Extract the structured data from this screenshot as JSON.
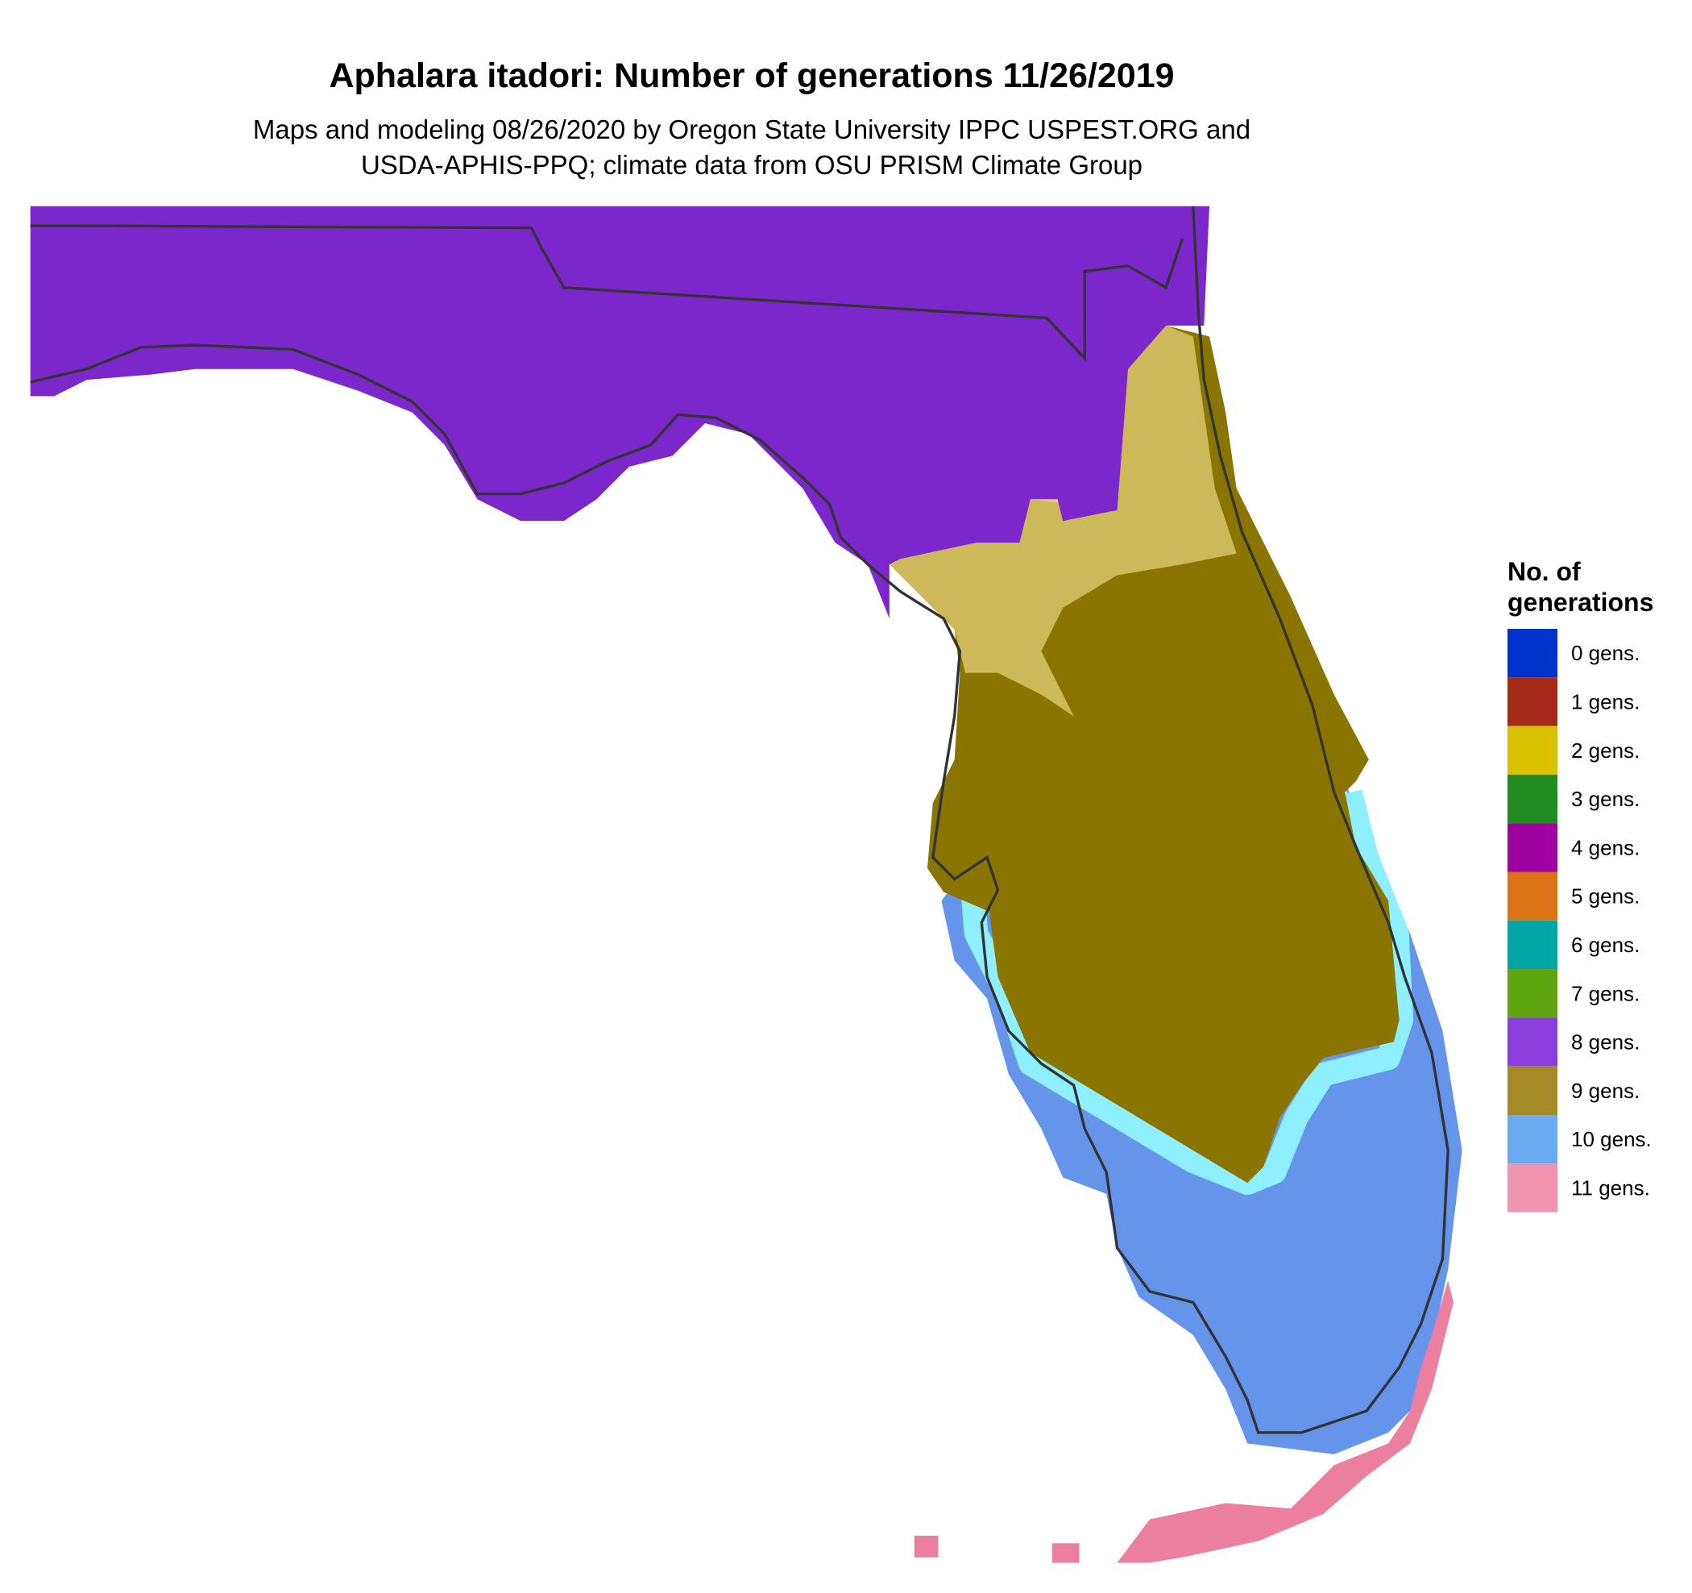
{
  "title": "Aphalara itadori: Number of generations 11/26/2019",
  "subtitle": [
    "Maps and modeling 08/26/2020 by Oregon State University IPPC USPEST.ORG and",
    "USDA-APHIS-PPQ; climate data from OSU PRISM Climate Group"
  ],
  "legend": {
    "title": [
      "No. of",
      "generations"
    ],
    "items": [
      {
        "label": "0 gens.",
        "color": "#0033cc"
      },
      {
        "label": "1 gens.",
        "color": "#a52a1a"
      },
      {
        "label": "2 gens.",
        "color": "#d9c200"
      },
      {
        "label": "3 gens.",
        "color": "#228b22"
      },
      {
        "label": "4 gens.",
        "color": "#a000a0"
      },
      {
        "label": "5 gens.",
        "color": "#d97316"
      },
      {
        "label": "6 gens.",
        "color": "#00a5a5"
      },
      {
        "label": "7 gens.",
        "color": "#5ea510"
      },
      {
        "label": "8 gens.",
        "color": "#8a3fdc"
      },
      {
        "label": "9 gens.",
        "color": "#a58b28"
      },
      {
        "label": "10 gens.",
        "color": "#6aaaf0"
      },
      {
        "label": "11 gens.",
        "color": "#f094b0"
      }
    ]
  }
}
